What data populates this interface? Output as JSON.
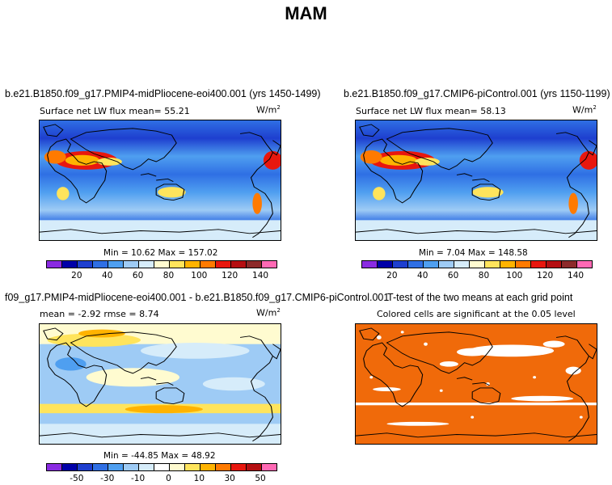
{
  "title": "MAM",
  "panels": {
    "top_left": {
      "title": "b.e21.B1850.f09_g17.PMIP4-midPliocene-eoi400.001 (yrs 1450-1499)",
      "subtitle": "Surface net LW flux mean=   55.21",
      "units": "W/m",
      "units_sup": "2",
      "stats": "Min =   10.62  Max =  157.02"
    },
    "top_right": {
      "title": "b.e21.B1850.f09_g17.CMIP6-piControl.001 (yrs 1150-1199)",
      "subtitle": "Surface net LW flux mean=   58.13",
      "units": "W/m",
      "units_sup": "2",
      "stats": "Min =    7.04  Max =  148.58"
    },
    "bottom_left": {
      "title": "f09_g17.PMIP4-midPliocene-eoi400.001 - b.e21.B1850.f09_g17.CMIP6-piControl.001",
      "subtitle": "mean =   -2.92     rmse =    8.74",
      "units": "W/m",
      "units_sup": "2",
      "stats": "Min = -44.85  Max =   48.92"
    },
    "bottom_right": {
      "title": "T-test of the two means at each grid point",
      "subtitle": "Colored cells are significant at the 0.05 level"
    }
  },
  "colorbar_abs": {
    "colors": [
      "#8a2be2",
      "#0000a8",
      "#1e3fcf",
      "#2f6fe4",
      "#4f9ff0",
      "#9ecbf5",
      "#d6ecfa",
      "#fffbd0",
      "#ffe45c",
      "#ffb300",
      "#ff7a00",
      "#e8170e",
      "#b50f12",
      "#8c2a2a",
      "#ff69b4"
    ],
    "ticks": [
      "20",
      "40",
      "60",
      "80",
      "100",
      "120",
      "140"
    ]
  },
  "colorbar_diff": {
    "colors": [
      "#8a2be2",
      "#0000a8",
      "#1e3fcf",
      "#2f6fe4",
      "#4f9ff0",
      "#9ecbf5",
      "#d6ecfa",
      "#ffffff",
      "#fffbd0",
      "#ffe45c",
      "#ffb300",
      "#ff7a00",
      "#e8170e",
      "#b50f12",
      "#ff69b4"
    ],
    "ticks": [
      "-50",
      "-30",
      "-10",
      "0",
      "10",
      "30",
      "50"
    ]
  },
  "ttest_color": "#f06a0a"
}
